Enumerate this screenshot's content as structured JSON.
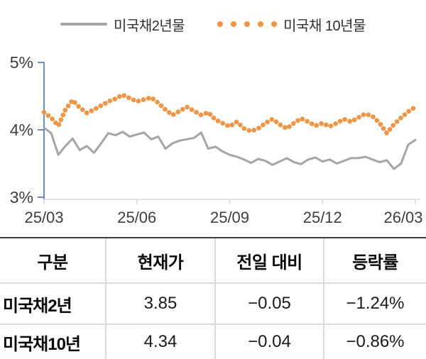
{
  "chart_data": {
    "type": "line",
    "title": "",
    "x_start": "25/03",
    "x_end": "26/03",
    "x_axis": {
      "tick_labels": [
        "25/03",
        "25/06",
        "25/09",
        "25/12",
        "26/03"
      ]
    },
    "y_axis": {
      "tick_labels": [
        "5%",
        "4%",
        "3%"
      ],
      "tick_values": [
        5,
        4,
        3
      ],
      "range": [
        3,
        5
      ]
    },
    "unit": "%",
    "legend_position": "top",
    "grid": false,
    "series": [
      {
        "name": "미국채2년물",
        "style": "solid-line",
        "color": "#A5A5A5",
        "values": [
          4.03,
          3.95,
          3.63,
          3.76,
          3.87,
          3.7,
          3.76,
          3.66,
          3.8,
          3.95,
          3.92,
          3.97,
          3.9,
          3.93,
          3.96,
          3.86,
          3.9,
          3.72,
          3.8,
          3.84,
          3.86,
          3.88,
          3.96,
          3.72,
          3.75,
          3.68,
          3.63,
          3.6,
          3.56,
          3.51,
          3.57,
          3.54,
          3.48,
          3.53,
          3.58,
          3.52,
          3.49,
          3.56,
          3.59,
          3.53,
          3.56,
          3.5,
          3.54,
          3.58,
          3.58,
          3.6,
          3.56,
          3.52,
          3.55,
          3.42,
          3.5,
          3.78,
          3.85
        ]
      },
      {
        "name": "미국채 10년물",
        "style": "dotted",
        "color": "#EF9545",
        "values": [
          4.26,
          4.18,
          4.06,
          4.3,
          4.44,
          4.33,
          4.25,
          4.3,
          4.36,
          4.42,
          4.46,
          4.52,
          4.47,
          4.42,
          4.45,
          4.48,
          4.4,
          4.3,
          4.22,
          4.28,
          4.34,
          4.28,
          4.22,
          4.26,
          4.15,
          4.1,
          4.05,
          4.12,
          4.02,
          3.98,
          4.02,
          4.1,
          4.16,
          4.08,
          4.02,
          4.1,
          4.17,
          4.12,
          4.06,
          4.1,
          4.05,
          4.1,
          4.16,
          4.12,
          4.18,
          4.24,
          4.2,
          4.1,
          3.95,
          4.08,
          4.18,
          4.27,
          4.34
        ]
      }
    ]
  },
  "table": {
    "headers": [
      "구분",
      "현재가",
      "전일 대비",
      "등락률"
    ],
    "rows": [
      {
        "label": "미국채2년",
        "values": [
          "3.85",
          "−0.05",
          "−1.24%"
        ]
      },
      {
        "label": "미국채10년",
        "values": [
          "4.34",
          "−0.04",
          "−0.86%"
        ]
      }
    ]
  },
  "colors": {
    "y_axis": "#4472C4",
    "x_axis": "#D9D9D9",
    "axis_text": "#3D3D3D",
    "series_2y": "#A5A5A5",
    "series_10y": "#EF9545",
    "table_border_dark": "#3A3A3A",
    "table_border_light": "#DBDBDB"
  }
}
